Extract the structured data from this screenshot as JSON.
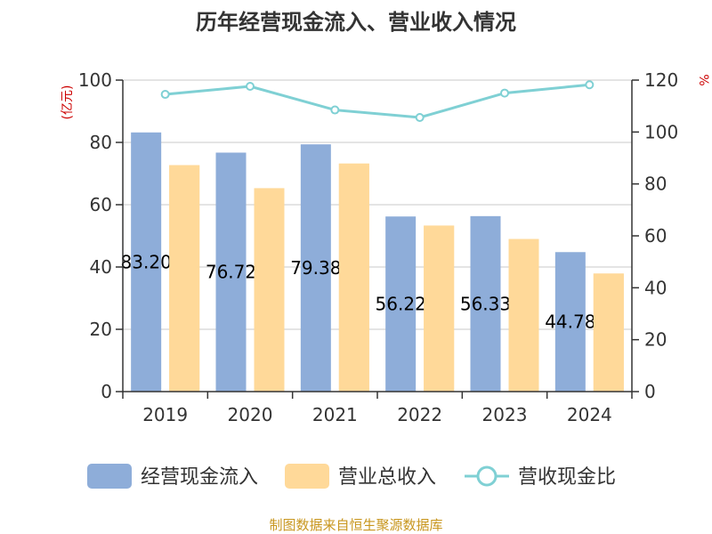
{
  "chart_data": {
    "type": "bar",
    "title": "历年经营现金流入、营业收入情况",
    "categories": [
      "2019",
      "2020",
      "2021",
      "2022",
      "2023",
      "2024"
    ],
    "y_left": {
      "unit": "(亿元)",
      "range": [
        0,
        100
      ],
      "ticks": [
        "0",
        "20",
        "40",
        "60",
        "80",
        "100"
      ]
    },
    "y_right": {
      "unit": "%",
      "range": [
        0,
        120
      ],
      "ticks": [
        "0",
        "20",
        "40",
        "60",
        "80",
        "100",
        "120"
      ]
    },
    "grid": true,
    "legend_position": "bottom",
    "series": [
      {
        "name": "经营现金流入",
        "kind": "bar",
        "axis": "left",
        "color": "#8eadd9",
        "values": [
          83.2,
          76.72,
          79.38,
          56.22,
          56.33,
          44.78
        ],
        "labels": [
          "83.20",
          "76.72",
          "79.38",
          "56.22",
          "56.33",
          "44.78"
        ]
      },
      {
        "name": "营业总收入",
        "kind": "bar",
        "axis": "left",
        "color": "#ffd999",
        "values": [
          72.7,
          65.3,
          73.2,
          53.3,
          49.0,
          37.9
        ]
      },
      {
        "name": "营收现金比",
        "kind": "line",
        "axis": "right",
        "color": "#7fd0d4",
        "values": [
          114.5,
          117.6,
          108.5,
          105.6,
          115.0,
          118.2
        ]
      }
    ],
    "source": "制图数据来自恒生聚源数据库"
  }
}
